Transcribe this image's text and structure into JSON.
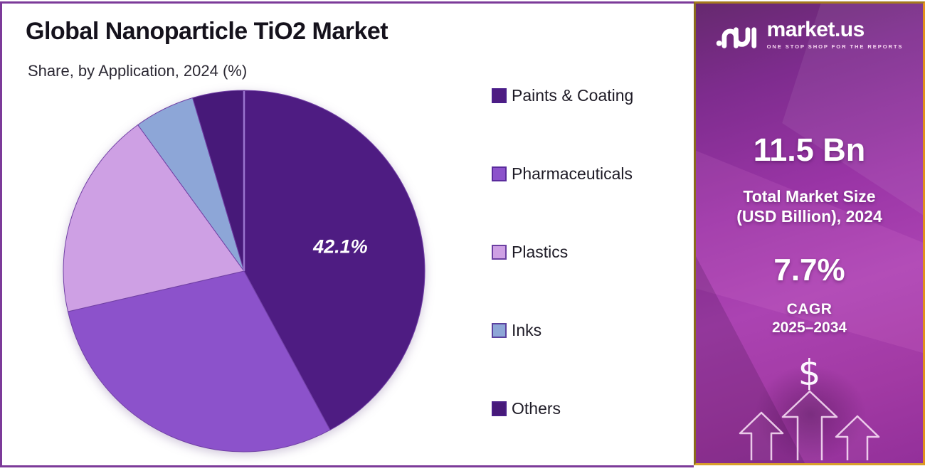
{
  "title": "Global Nanoparticle TiO2 Market",
  "subtitle": "Share, by Application, 2024 (%)",
  "chart_data": {
    "type": "pie",
    "title": "Global Nanoparticle TiO2 Market",
    "subtitle": "Share, by Application, 2024 (%)",
    "unit": "%",
    "start_angle_deg": 0,
    "direction": "clockwise",
    "legend_position": "right",
    "slices": [
      {
        "label": "Paints & Coating",
        "value": 42.1,
        "color": "#4E1C82",
        "data_label": "42.1%"
      },
      {
        "label": "Pharmaceuticals",
        "value": 29.3,
        "color": "#8C52CB",
        "data_label": ""
      },
      {
        "label": "Plastics",
        "value": 18.6,
        "color": "#CEA0E4",
        "data_label": ""
      },
      {
        "label": "Inks",
        "value": 5.4,
        "color": "#8DA6D7",
        "data_label": ""
      },
      {
        "label": "Others",
        "value": 4.6,
        "color": "#471979",
        "data_label": ""
      }
    ]
  },
  "sidebar": {
    "brand": {
      "name": "market.us",
      "tagline": "ONE STOP SHOP FOR THE REPORTS"
    },
    "market_size_value": "11.5 Bn",
    "market_size_label_line1": "Total Market Size",
    "market_size_label_line2": "(USD Billion), 2024",
    "cagr_value": "7.7%",
    "cagr_label_line1": "CAGR",
    "cagr_label_line2": "2025–2034",
    "dollar_symbol": "$",
    "colors": {
      "border_gold": "#C8901F",
      "background_top": "#66296F",
      "background_mid": "#A23AA4",
      "accent_text": "#FFFFFF"
    }
  },
  "canvas": {
    "border_color": "#7C3A99",
    "background": "#FFFFFF"
  }
}
